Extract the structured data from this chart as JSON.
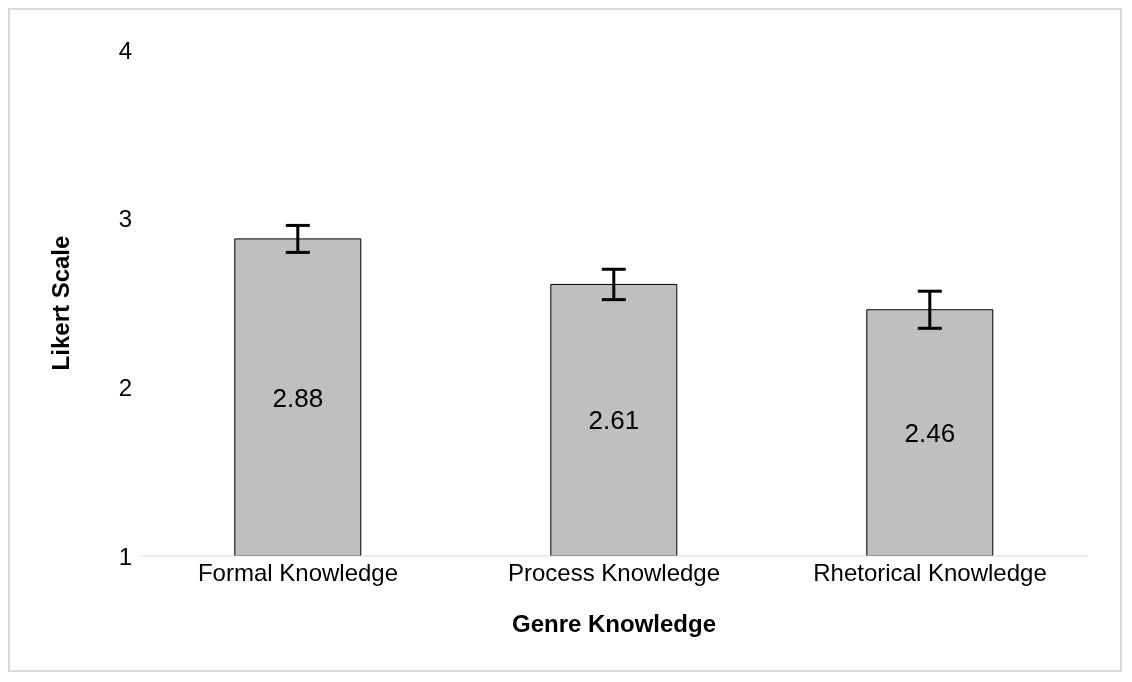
{
  "chart_data": {
    "type": "bar",
    "xlabel": "Genre Knowledge",
    "ylabel": "Likert Scale",
    "categories": [
      "Formal Knowledge",
      "Process Knowledge",
      "Rhetorical Knowledge"
    ],
    "values": [
      2.88,
      2.61,
      2.46
    ],
    "errors": [
      0.08,
      0.09,
      0.11
    ],
    "color": "#bfbfbf",
    "ylim": [
      1,
      4
    ],
    "yticks": [
      1,
      2,
      3,
      4
    ],
    "grid": false,
    "data_labels": true
  }
}
